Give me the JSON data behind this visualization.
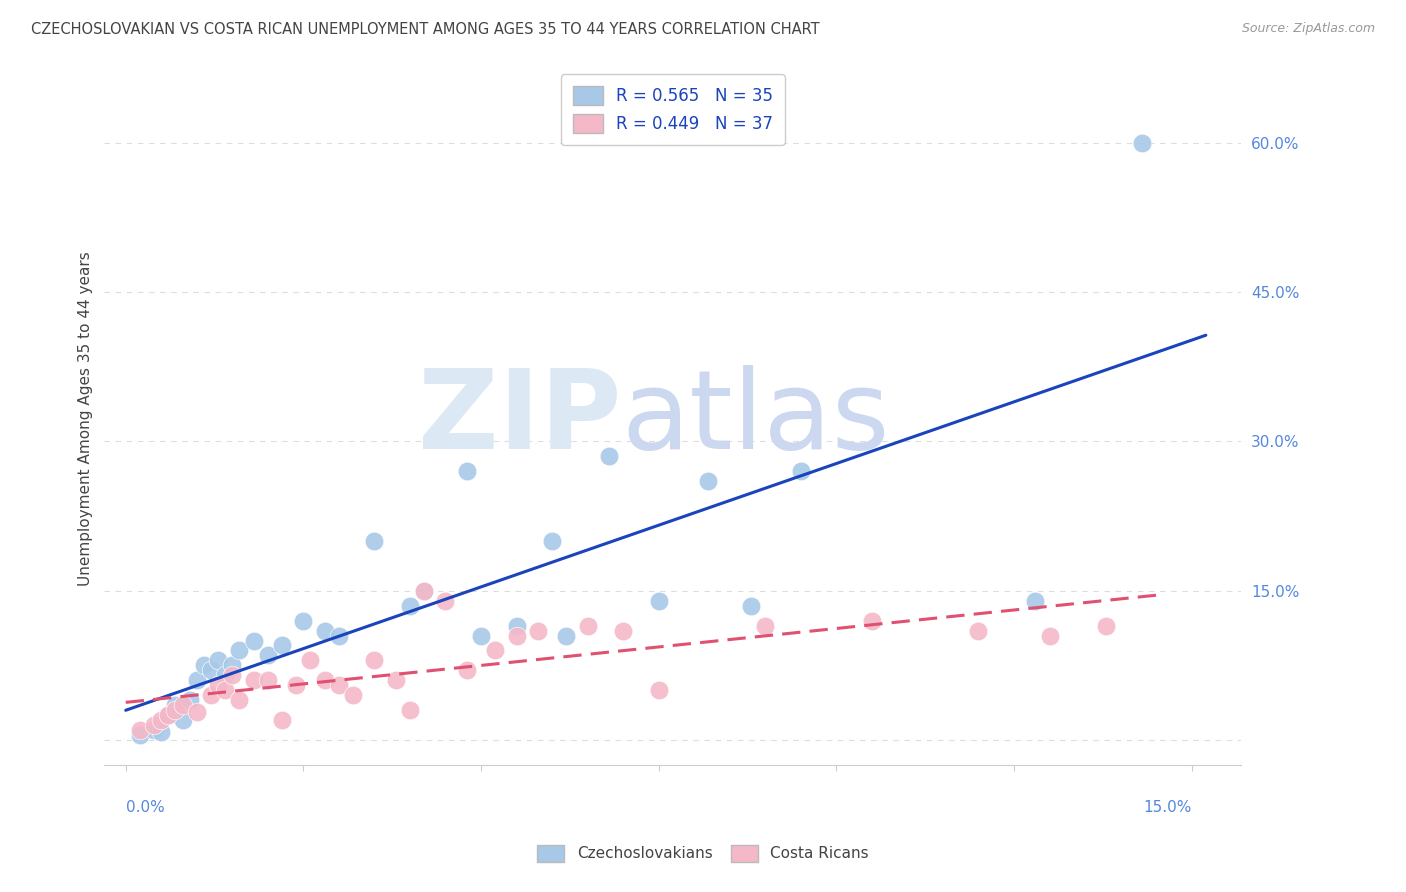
{
  "title": "CZECHOSLOVAKIAN VS COSTA RICAN UNEMPLOYMENT AMONG AGES 35 TO 44 YEARS CORRELATION CHART",
  "source": "Source: ZipAtlas.com",
  "ylabel": "Unemployment Among Ages 35 to 44 years",
  "czech_color": "#a8c8e8",
  "costa_color": "#f4b8c8",
  "czech_line_color": "#1a44bb",
  "costa_line_color": "#e05070",
  "czech_R": 0.565,
  "czech_N": 35,
  "costa_R": 0.449,
  "costa_N": 37,
  "czech_scatter_x": [
    0.002,
    0.004,
    0.005,
    0.006,
    0.007,
    0.008,
    0.009,
    0.01,
    0.011,
    0.012,
    0.013,
    0.014,
    0.015,
    0.016,
    0.018,
    0.02,
    0.022,
    0.025,
    0.028,
    0.03,
    0.035,
    0.04,
    0.042,
    0.048,
    0.05,
    0.055,
    0.06,
    0.062,
    0.068,
    0.075,
    0.082,
    0.088,
    0.095,
    0.128,
    0.143
  ],
  "czech_scatter_y": [
    0.005,
    0.01,
    0.008,
    0.025,
    0.035,
    0.02,
    0.04,
    0.06,
    0.075,
    0.07,
    0.08,
    0.065,
    0.075,
    0.09,
    0.1,
    0.085,
    0.095,
    0.12,
    0.11,
    0.105,
    0.2,
    0.135,
    0.15,
    0.27,
    0.105,
    0.115,
    0.2,
    0.105,
    0.285,
    0.14,
    0.26,
    0.135,
    0.27,
    0.14,
    0.6
  ],
  "costa_scatter_x": [
    0.002,
    0.004,
    0.005,
    0.006,
    0.007,
    0.008,
    0.01,
    0.012,
    0.013,
    0.014,
    0.015,
    0.016,
    0.018,
    0.02,
    0.022,
    0.024,
    0.026,
    0.028,
    0.03,
    0.032,
    0.035,
    0.038,
    0.04,
    0.042,
    0.045,
    0.048,
    0.052,
    0.055,
    0.058,
    0.065,
    0.07,
    0.075,
    0.09,
    0.105,
    0.12,
    0.13,
    0.138
  ],
  "costa_scatter_y": [
    0.01,
    0.015,
    0.02,
    0.025,
    0.03,
    0.035,
    0.028,
    0.045,
    0.055,
    0.05,
    0.065,
    0.04,
    0.06,
    0.06,
    0.02,
    0.055,
    0.08,
    0.06,
    0.055,
    0.045,
    0.08,
    0.06,
    0.03,
    0.15,
    0.14,
    0.07,
    0.09,
    0.105,
    0.11,
    0.115,
    0.11,
    0.05,
    0.115,
    0.12,
    0.11,
    0.105,
    0.115
  ],
  "xlim_min": -0.003,
  "xlim_max": 0.157,
  "ylim_min": -0.025,
  "ylim_max": 0.67,
  "yticks": [
    0.0,
    0.15,
    0.3,
    0.45,
    0.6
  ],
  "ytick_labels_right": [
    "",
    "15.0%",
    "30.0%",
    "45.0%",
    "60.0%"
  ],
  "xtick_positions": [
    0.0,
    0.025,
    0.05,
    0.075,
    0.1,
    0.125,
    0.15
  ],
  "grid_color": "#dddddd",
  "spine_color": "#cccccc",
  "axis_label_color": "#5588dd",
  "text_color": "#444444",
  "watermark_zip_color": "#dde8f5",
  "watermark_atlas_color": "#ccd8f0"
}
